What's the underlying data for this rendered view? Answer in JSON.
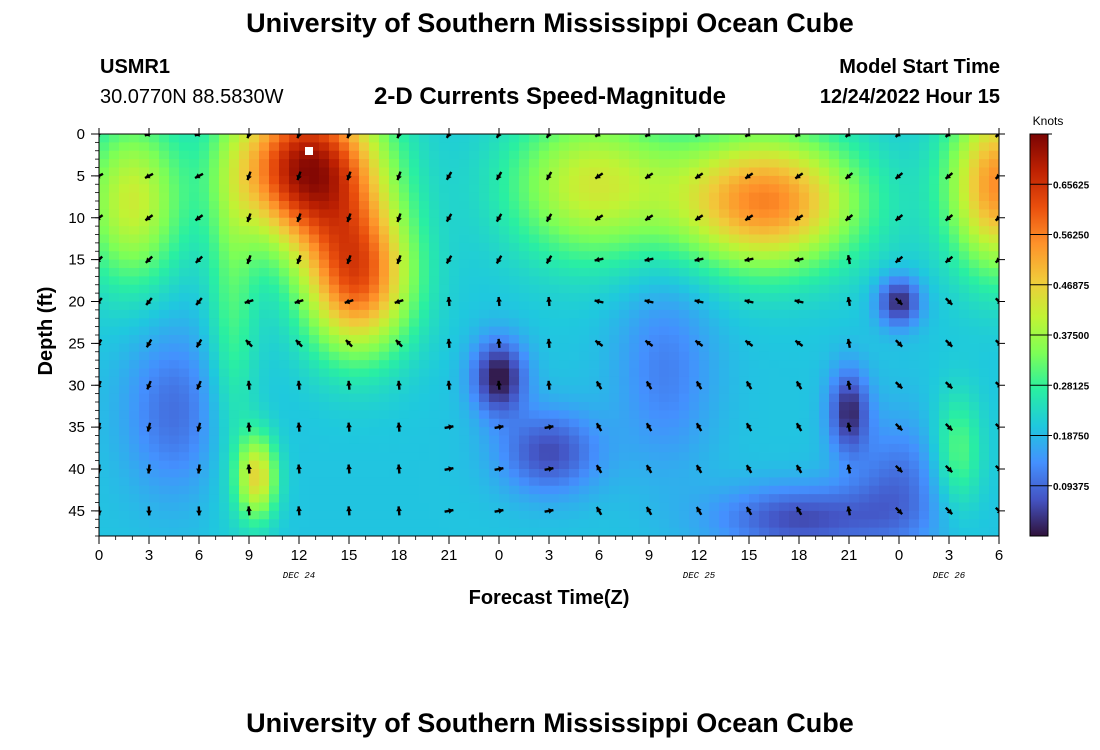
{
  "header": {
    "title": "University of Southern Mississippi Ocean Cube",
    "station": "USMR1",
    "coords": "30.0770N  88.5830W",
    "subtitle": "2-D Currents Speed-Magnitude",
    "model_start_label": "Model Start Time",
    "model_start_value": "12/24/2022 Hour 15"
  },
  "footer": {
    "title": "University of Southern Mississippi Ocean Cube"
  },
  "colors": {
    "scale": [
      "#30123b",
      "#4454c4",
      "#4490fe",
      "#1fc8de",
      "#29efa2",
      "#7dff56",
      "#c1f334",
      "#f1ca3a",
      "#fe922a",
      "#ea4f0d",
      "#be2102",
      "#7a0403"
    ],
    "arrow": "#000000"
  },
  "chart_data": {
    "type": "heatmap",
    "xlabel": "Forecast Time(Z)",
    "ylabel": "Depth (ft)",
    "colorbar_label": "Knots",
    "colorbar_ticks": [
      "0.65625",
      "0.56250",
      "0.46875",
      "0.37500",
      "0.28125",
      "0.18750",
      "0.09375"
    ],
    "colorbar_values": [
      0.65625,
      0.5625,
      0.46875,
      0.375,
      0.28125,
      0.1875,
      0.09375
    ],
    "value_range": [
      0.0,
      0.75
    ],
    "x_tick_labels": [
      "0",
      "3",
      "6",
      "9",
      "12",
      "15",
      "18",
      "21",
      "0",
      "3",
      "6",
      "9",
      "12",
      "15",
      "18",
      "21",
      "0",
      "3",
      "6"
    ],
    "x_range_hours": [
      0,
      54
    ],
    "date_labels": [
      {
        "label": "DEC 24",
        "hour": 12
      },
      {
        "label": "DEC 25",
        "hour": 36
      },
      {
        "label": "DEC 26",
        "hour": 51
      }
    ],
    "y_ticks": [
      0,
      5,
      10,
      15,
      20,
      25,
      30,
      35,
      40,
      45
    ],
    "y_tick_labels": [
      "0",
      "5",
      "10",
      "15",
      "20",
      "25",
      "30",
      "35",
      "40",
      "45"
    ],
    "y_range": [
      0,
      48
    ],
    "vector_depths": [
      0,
      5,
      10,
      15,
      20,
      25,
      30,
      35,
      40,
      45
    ],
    "vector_hours": [
      0,
      3,
      6,
      9,
      12,
      15,
      18,
      21,
      24,
      27,
      30,
      33,
      36,
      39,
      42,
      45,
      48,
      51,
      54
    ],
    "speed_peaks": [
      {
        "hour": 12,
        "depth": 3,
        "speed": 0.72
      },
      {
        "hour": 14,
        "depth": 14,
        "speed": 0.62
      },
      {
        "hour": 9.5,
        "depth": 40,
        "speed": 0.45
      },
      {
        "hour": 40,
        "depth": 8,
        "speed": 0.63
      },
      {
        "hour": 30,
        "depth": 5,
        "speed": 0.48
      },
      {
        "hour": 54,
        "depth": 3,
        "speed": 0.55
      }
    ],
    "speed_minima": [
      {
        "hour": 24,
        "depth": 29,
        "speed": 0.03
      },
      {
        "hour": 48,
        "depth": 20,
        "speed": 0.04
      },
      {
        "hour": 45,
        "depth": 33,
        "speed": 0.05
      },
      {
        "hour": 27,
        "depth": 38,
        "speed": 0.08
      },
      {
        "hour": 42,
        "depth": 46,
        "speed": 0.07
      }
    ]
  }
}
